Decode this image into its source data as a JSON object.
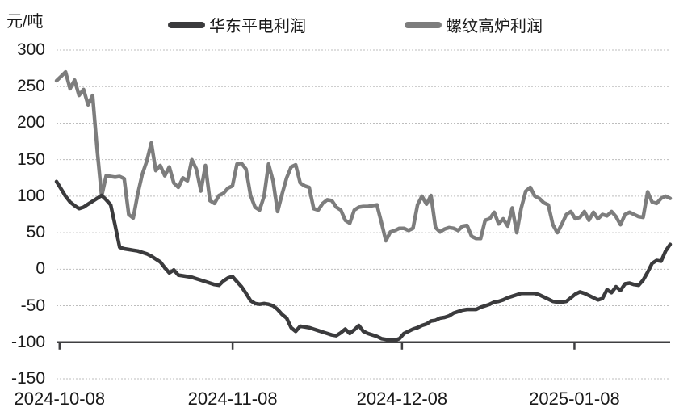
{
  "header": {
    "unit_label": "元/吨"
  },
  "legend": {
    "items": [
      {
        "label": "华东平电利润",
        "color": "#3b3b3d"
      },
      {
        "label": "螺纹高炉利润",
        "color": "#7d7d7d"
      }
    ]
  },
  "chart_data": {
    "type": "line",
    "title": "",
    "xlabel": "",
    "ylabel": "元/吨",
    "ylim": [
      -150,
      300
    ],
    "grid": true,
    "legend_position": "top-center",
    "x_axis_cross": -100,
    "y_ticks": [
      300,
      250,
      200,
      150,
      100,
      50,
      0,
      -50,
      -100,
      -150
    ],
    "x_ticks": [
      {
        "label": "2024-10-08",
        "pos": 0.005
      },
      {
        "label": "2024-11-08",
        "pos": 0.287
      },
      {
        "label": "2024-12-08",
        "pos": 0.563
      },
      {
        "label": "2025-01-08",
        "pos": 0.844
      }
    ],
    "series": [
      {
        "name": "华东平电利润",
        "color": "#3b3b3d",
        "values": [
          120,
          110,
          100,
          92,
          87,
          83,
          85,
          89,
          93,
          97,
          101,
          95,
          88,
          60,
          30,
          28,
          27,
          26,
          25,
          23,
          21,
          18,
          14,
          10,
          2,
          -5,
          -1,
          -8,
          -9,
          -10,
          -11,
          -13,
          -15,
          -17,
          -19,
          -21,
          -22,
          -16,
          -12,
          -10,
          -17,
          -24,
          -33,
          -43,
          -47,
          -48,
          -47,
          -48,
          -50,
          -55,
          -62,
          -67,
          -80,
          -85,
          -78,
          -79,
          -80,
          -82,
          -84,
          -86,
          -88,
          -90,
          -91,
          -87,
          -82,
          -88,
          -83,
          -77,
          -85,
          -88,
          -90,
          -92,
          -95,
          -96,
          -97,
          -97,
          -95,
          -88,
          -85,
          -82,
          -80,
          -77,
          -75,
          -71,
          -70,
          -67,
          -66,
          -64,
          -60,
          -58,
          -56,
          -55,
          -55,
          -55,
          -52,
          -50,
          -48,
          -45,
          -44,
          -42,
          -39,
          -37,
          -35,
          -33,
          -33,
          -33,
          -33,
          -35,
          -38,
          -41,
          -44,
          -45,
          -45,
          -44,
          -39,
          -34,
          -31,
          -33,
          -36,
          -39,
          -42,
          -40,
          -28,
          -32,
          -24,
          -29,
          -20,
          -19,
          -21,
          -22,
          -15,
          -4,
          8,
          12,
          11,
          25,
          34
        ]
      },
      {
        "name": "螺纹高炉利润",
        "color": "#7d7d7d",
        "values": [
          258,
          264,
          270,
          247,
          259,
          238,
          246,
          225,
          238,
          164,
          100,
          128,
          127,
          126,
          127,
          124,
          75,
          70,
          103,
          130,
          148,
          173,
          135,
          142,
          128,
          140,
          118,
          112,
          125,
          121,
          150,
          137,
          107,
          142,
          94,
          90,
          101,
          104,
          111,
          114,
          144,
          145,
          137,
          101,
          85,
          81,
          100,
          144,
          121,
          79,
          103,
          125,
          140,
          143,
          118,
          114,
          112,
          83,
          81,
          90,
          95,
          94,
          85,
          81,
          67,
          63,
          81,
          85,
          86,
          86,
          87,
          88,
          64,
          39,
          51,
          53,
          56,
          56,
          53,
          56,
          88,
          100,
          89,
          101,
          57,
          51,
          55,
          57,
          56,
          53,
          59,
          60,
          45,
          42,
          42,
          67,
          69,
          78,
          62,
          69,
          59,
          84,
          50,
          84,
          107,
          112,
          100,
          97,
          91,
          88,
          61,
          50,
          62,
          75,
          79,
          69,
          71,
          79,
          67,
          78,
          69,
          75,
          73,
          79,
          72,
          61,
          75,
          78,
          75,
          72,
          71,
          106,
          92,
          90,
          97,
          100,
          97
        ]
      }
    ]
  }
}
